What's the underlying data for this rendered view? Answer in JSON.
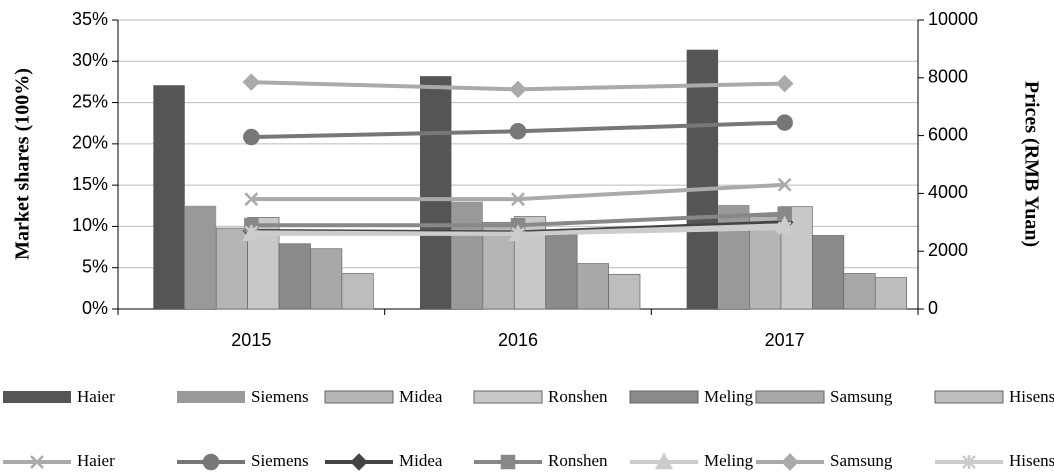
{
  "chart_data": {
    "type": "bar",
    "ylabel": "Market shares (100%)",
    "y2label": "Prices (RMB Yuan)",
    "categories": [
      "2015",
      "2016",
      "2017"
    ],
    "ylim": [
      0,
      35
    ],
    "yticks": [
      {
        "value": 0,
        "label": "0%"
      },
      {
        "value": 5,
        "label": "5%"
      },
      {
        "value": 10,
        "label": "10%"
      },
      {
        "value": 15,
        "label": "15%"
      },
      {
        "value": 20,
        "label": "20%"
      },
      {
        "value": 25,
        "label": "25%"
      },
      {
        "value": 30,
        "label": "30%"
      },
      {
        "value": 35,
        "label": "35%"
      }
    ],
    "y2lim": [
      0,
      10000
    ],
    "y2ticks": [
      0,
      2000,
      4000,
      6000,
      8000,
      10000
    ],
    "grid": true,
    "legend": "bottom",
    "series": [
      {
        "name": "Haier",
        "color": "#555555",
        "values": [
          27.1,
          28.2,
          31.4
        ]
      },
      {
        "name": "Siemens",
        "color": "#999999",
        "values": [
          12.5,
          13.0,
          12.6
        ]
      },
      {
        "name": "Midea",
        "color": "#b5b5b5",
        "values": [
          9.8,
          10.5,
          11.2
        ]
      },
      {
        "name": "Ronshen",
        "color": "#c8c8c8",
        "values": [
          11.1,
          11.2,
          12.4
        ]
      },
      {
        "name": "Meling",
        "color": "#8a8a8a",
        "values": [
          7.9,
          9.0,
          8.9
        ]
      },
      {
        "name": "Samsung",
        "color": "#a8a8a8",
        "values": [
          7.3,
          5.5,
          4.3
        ]
      },
      {
        "name": "Hisense",
        "color": "#bdbdbd",
        "values": [
          4.3,
          4.2,
          3.8
        ]
      },
      {
        "name": "Haier",
        "color": "#aaaaaa",
        "marker": "x",
        "axis": "y2",
        "values": [
          3800,
          3800,
          4300
        ]
      },
      {
        "name": "Siemens",
        "color": "#777777",
        "marker": "circle",
        "axis": "y2",
        "values": [
          5950,
          6150,
          6450
        ]
      },
      {
        "name": "Midea",
        "color": "#444444",
        "marker": "diamond",
        "axis": "y2",
        "values": [
          2700,
          2650,
          3000
        ]
      },
      {
        "name": "Ronshen",
        "color": "#888888",
        "marker": "square",
        "axis": "y2",
        "values": [
          2900,
          2900,
          3300
        ]
      },
      {
        "name": "Meling",
        "color": "#cccccc",
        "marker": "triangle",
        "axis": "y2",
        "values": [
          2600,
          2600,
          2900
        ]
      },
      {
        "name": "Samsung",
        "color": "#aaaaaa",
        "marker": "diamond",
        "axis": "y2",
        "values": [
          7850,
          7600,
          7800
        ]
      },
      {
        "name": "Hisense",
        "color": "#cccccc",
        "marker": "star",
        "axis": "y2",
        "values": [
          2650,
          2600,
          2800
        ]
      }
    ]
  }
}
